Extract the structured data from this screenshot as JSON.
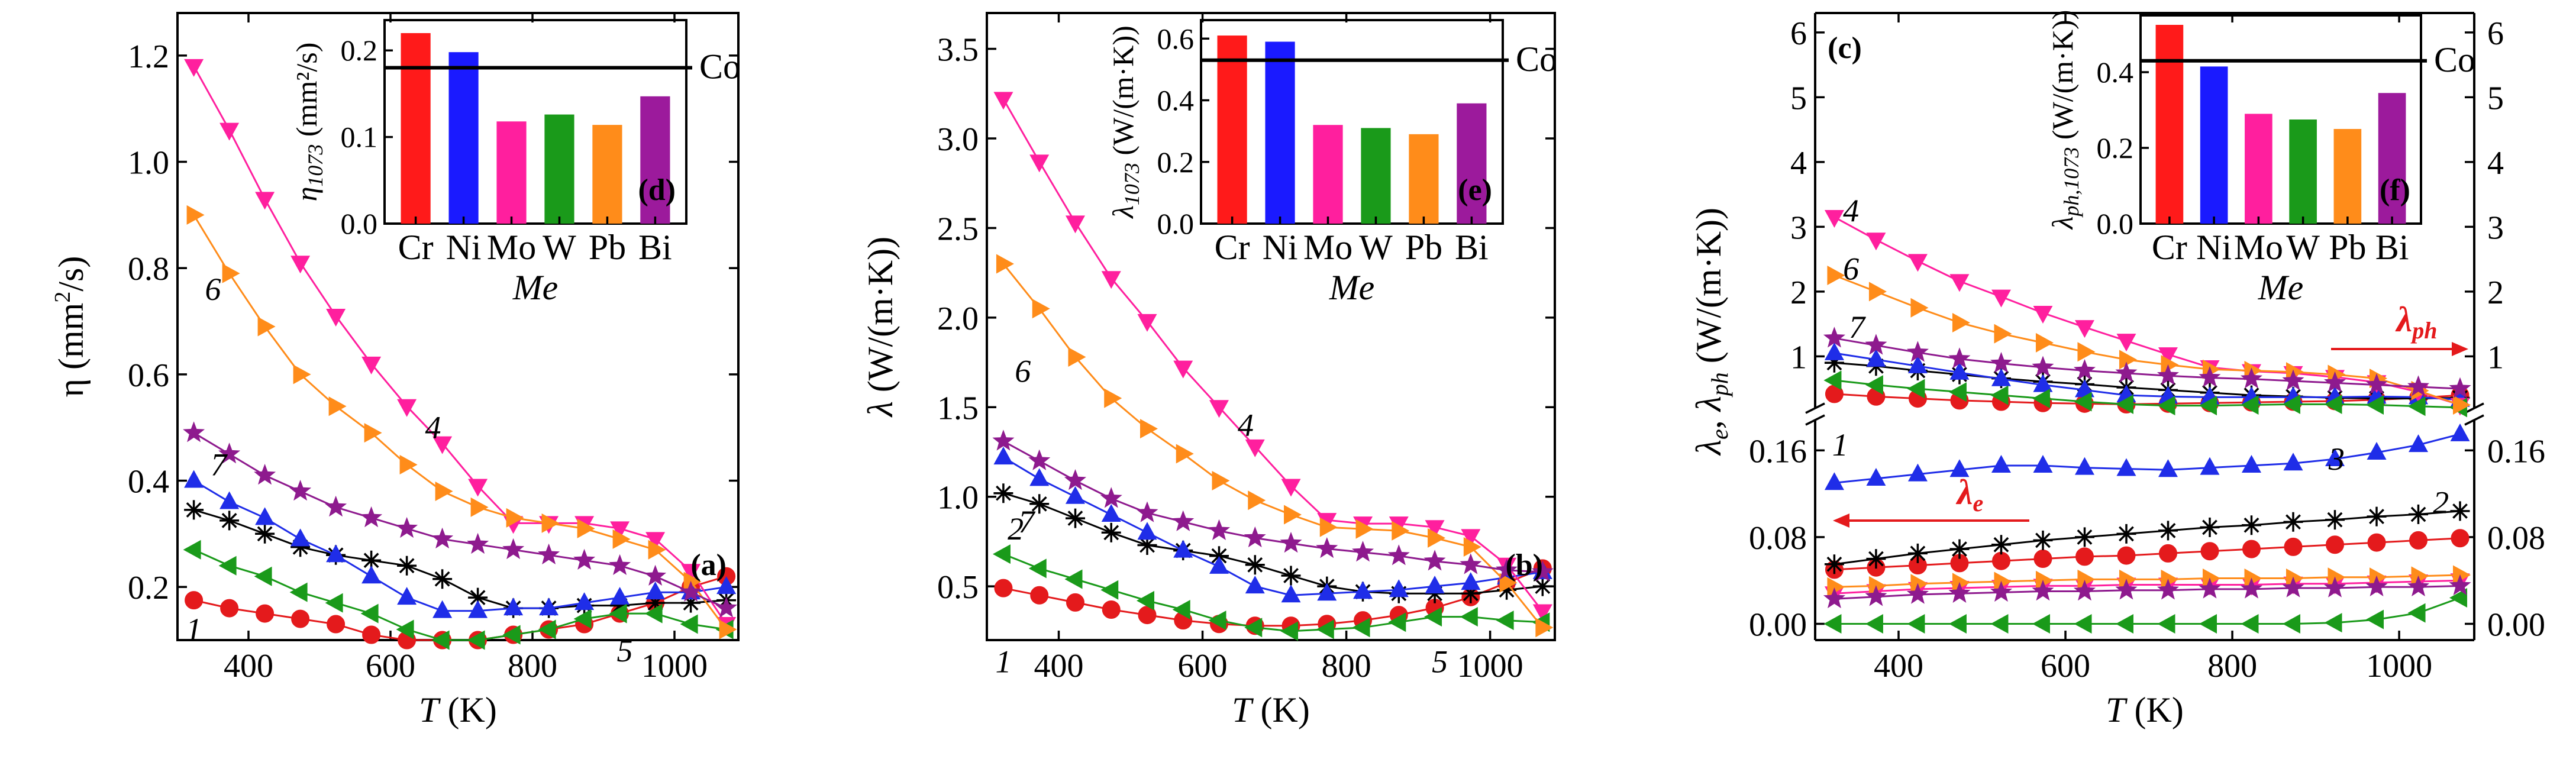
{
  "figure": {
    "curve_labels": [
      "1",
      "2",
      "3",
      "4",
      "5",
      "6",
      "7"
    ],
    "colors": {
      "1": "#e41a1c",
      "2": "#000000",
      "3": "#1f2de8",
      "4": "#ff1f9e",
      "5": "#1a9a1a",
      "6": "#ff8c1a",
      "7": "#8e1a8e",
      "Cr": "#ff1a1a",
      "Ni": "#1a1aff",
      "Mo": "#ff1f9e",
      "W": "#1a9a1a",
      "Pb": "#ff8c1a",
      "Bi": "#9c1a9c"
    },
    "annotations": {
      "lambda_ph": "λ",
      "lambda_ph_sub": "ph",
      "lambda_e": "λ",
      "lambda_e_sub": "e"
    }
  },
  "chart_data": [
    {
      "id": "a",
      "type": "line",
      "panel_label": "(a)",
      "xlabel": "T (K)",
      "ylabel": "η (mm²/s)",
      "xlim": [
        300,
        1090
      ],
      "ylim": [
        0.1,
        1.28
      ],
      "xticks": [
        "400",
        "600",
        "800",
        "1000"
      ],
      "yticks": [
        "0.2",
        "0.4",
        "0.6",
        "0.8",
        "1.0",
        "1.2"
      ],
      "x": [
        323,
        373,
        423,
        473,
        523,
        573,
        623,
        673,
        723,
        773,
        823,
        873,
        923,
        973,
        1023,
        1073
      ],
      "series": [
        {
          "name": "1",
          "marker": "circle",
          "values": [
            0.175,
            0.16,
            0.15,
            0.14,
            0.13,
            0.11,
            0.1,
            0.1,
            0.1,
            0.11,
            0.12,
            0.13,
            0.15,
            0.17,
            0.2,
            0.22
          ]
        },
        {
          "name": "2",
          "marker": "asterisk",
          "values": [
            0.345,
            0.325,
            0.3,
            0.275,
            0.26,
            0.25,
            0.24,
            0.215,
            0.18,
            0.16,
            0.16,
            0.165,
            0.165,
            0.17,
            0.17,
            0.175
          ]
        },
        {
          "name": "3",
          "marker": "triangle-up",
          "values": [
            0.4,
            0.36,
            0.33,
            0.29,
            0.26,
            0.22,
            0.18,
            0.155,
            0.155,
            0.16,
            0.16,
            0.17,
            0.18,
            0.19,
            0.19,
            0.2
          ]
        },
        {
          "name": "4",
          "marker": "triangle-down",
          "values": [
            1.18,
            1.06,
            0.93,
            0.81,
            0.71,
            0.62,
            0.54,
            0.47,
            0.39,
            0.32,
            0.32,
            0.32,
            0.31,
            0.29,
            0.23,
            0.13
          ]
        },
        {
          "name": "5",
          "marker": "triangle-left",
          "values": [
            0.27,
            0.24,
            0.22,
            0.19,
            0.17,
            0.15,
            0.12,
            0.1,
            0.1,
            0.11,
            0.12,
            0.14,
            0.15,
            0.15,
            0.13,
            0.12
          ]
        },
        {
          "name": "6",
          "marker": "triangle-right",
          "values": [
            0.9,
            0.79,
            0.69,
            0.6,
            0.54,
            0.49,
            0.43,
            0.38,
            0.35,
            0.33,
            0.32,
            0.31,
            0.29,
            0.27,
            0.21,
            0.12
          ]
        },
        {
          "name": "7",
          "marker": "star",
          "values": [
            0.49,
            0.45,
            0.41,
            0.38,
            0.35,
            0.33,
            0.31,
            0.29,
            0.28,
            0.27,
            0.26,
            0.25,
            0.24,
            0.22,
            0.19,
            0.16
          ]
        }
      ],
      "curve_label_positions": {
        "1": [
          323,
          0.12
        ],
        "4": [
          660,
          0.5
        ],
        "5": [
          930,
          0.08
        ],
        "6": [
          350,
          0.76
        ],
        "7": [
          358,
          0.43
        ]
      },
      "inset": {
        "panel_label": "(d)",
        "type": "bar",
        "xlabel": "Me",
        "ylabel": "η1073 (mm²/s)",
        "ylabel_main": "η",
        "ylabel_sub": "1073",
        "ylabel_unit": " (mm²/s)",
        "categories": [
          "Cr",
          "Ni",
          "Mo",
          "W",
          "Pb",
          "Bi"
        ],
        "values": [
          0.22,
          0.198,
          0.118,
          0.126,
          0.114,
          0.147
        ],
        "ylim": [
          0,
          0.235
        ],
        "yticks": [
          "0.0",
          "0.1",
          "0.2"
        ],
        "reference": {
          "label": "Co",
          "value": 0.18
        }
      }
    },
    {
      "id": "b",
      "type": "line",
      "panel_label": "(b)",
      "xlabel": "T (K)",
      "ylabel": "λ (W/(m·K))",
      "xlim": [
        300,
        1090
      ],
      "ylim": [
        0.2,
        3.7
      ],
      "xticks": [
        "400",
        "600",
        "800",
        "1000"
      ],
      "yticks": [
        "0.5",
        "1.0",
        "1.5",
        "2.0",
        "2.5",
        "3.0",
        "3.5"
      ],
      "x": [
        323,
        373,
        423,
        473,
        523,
        573,
        623,
        673,
        723,
        773,
        823,
        873,
        923,
        973,
        1023,
        1073
      ],
      "series": [
        {
          "name": "1",
          "marker": "circle",
          "values": [
            0.49,
            0.45,
            0.41,
            0.37,
            0.34,
            0.31,
            0.29,
            0.28,
            0.28,
            0.29,
            0.31,
            0.34,
            0.38,
            0.44,
            0.52,
            0.6
          ]
        },
        {
          "name": "2",
          "marker": "asterisk",
          "values": [
            1.02,
            0.96,
            0.88,
            0.8,
            0.73,
            0.7,
            0.67,
            0.62,
            0.56,
            0.5,
            0.47,
            0.46,
            0.46,
            0.46,
            0.48,
            0.5
          ]
        },
        {
          "name": "3",
          "marker": "triangle-up",
          "values": [
            1.22,
            1.1,
            1.0,
            0.9,
            0.8,
            0.7,
            0.61,
            0.5,
            0.45,
            0.46,
            0.47,
            0.48,
            0.5,
            0.52,
            0.55,
            0.58
          ]
        },
        {
          "name": "4",
          "marker": "triangle-down",
          "values": [
            3.22,
            2.87,
            2.53,
            2.22,
            1.98,
            1.72,
            1.5,
            1.28,
            1.06,
            0.87,
            0.85,
            0.85,
            0.83,
            0.78,
            0.62,
            0.36
          ]
        },
        {
          "name": "5",
          "marker": "triangle-left",
          "values": [
            0.68,
            0.6,
            0.54,
            0.48,
            0.42,
            0.37,
            0.31,
            0.27,
            0.25,
            0.26,
            0.27,
            0.3,
            0.33,
            0.33,
            0.31,
            0.3
          ]
        },
        {
          "name": "6",
          "marker": "triangle-right",
          "values": [
            2.3,
            2.05,
            1.78,
            1.55,
            1.38,
            1.24,
            1.09,
            0.98,
            0.9,
            0.83,
            0.82,
            0.81,
            0.77,
            0.72,
            0.52,
            0.27
          ]
        },
        {
          "name": "7",
          "marker": "star",
          "values": [
            1.31,
            1.2,
            1.09,
            0.99,
            0.91,
            0.86,
            0.81,
            0.77,
            0.74,
            0.71,
            0.69,
            0.67,
            0.64,
            0.62,
            0.59,
            0.58
          ]
        }
      ],
      "curve_label_positions": {
        "1": [
          323,
          0.08
        ],
        "2": [
          340,
          0.82
        ],
        "4": [
          660,
          1.4
        ],
        "5": [
          930,
          0.08
        ],
        "6": [
          350,
          1.7
        ],
        "7": [
          355,
          0.86
        ]
      },
      "inset": {
        "panel_label": "(e)",
        "type": "bar",
        "xlabel": "Me",
        "ylabel": "λ1073 (W/(m·K))",
        "ylabel_main": "λ",
        "ylabel_sub": "1073",
        "ylabel_unit": " (W/(m·K))",
        "categories": [
          "Cr",
          "Ni",
          "Mo",
          "W",
          "Pb",
          "Bi"
        ],
        "values": [
          0.61,
          0.59,
          0.32,
          0.31,
          0.29,
          0.39
        ],
        "ylim": [
          0,
          0.66
        ],
        "yticks": [
          "0.0",
          "0.2",
          "0.4",
          "0.6"
        ],
        "reference": {
          "label": "Co",
          "value": 0.53
        }
      }
    },
    {
      "id": "c",
      "type": "line",
      "panel_label": "(c)",
      "xlabel": "T (K)",
      "ylabel": "λe, λph (W/(m·K))",
      "xlim": [
        300,
        1090
      ],
      "upper_ylim": [
        0.2,
        6.3
      ],
      "upper_yticks": [
        "1",
        "2",
        "3",
        "4",
        "5",
        "6"
      ],
      "lower_ylim": [
        -0.015,
        0.188
      ],
      "lower_yticks": [
        "0.00",
        "0.08",
        "0.16"
      ],
      "xticks": [
        "400",
        "600",
        "800",
        "1000"
      ],
      "x": [
        323,
        373,
        423,
        473,
        523,
        573,
        623,
        673,
        723,
        773,
        823,
        873,
        923,
        973,
        1023,
        1073
      ],
      "series_ph": [
        {
          "name": "1",
          "marker": "circle",
          "values": [
            0.42,
            0.38,
            0.35,
            0.32,
            0.3,
            0.28,
            0.27,
            0.26,
            0.27,
            0.28,
            0.29,
            0.3,
            0.31,
            0.33,
            0.36,
            0.4
          ]
        },
        {
          "name": "2",
          "marker": "asterisk",
          "values": [
            0.9,
            0.85,
            0.78,
            0.72,
            0.66,
            0.61,
            0.57,
            0.52,
            0.48,
            0.44,
            0.4,
            0.38,
            0.36,
            0.35,
            0.35,
            0.36
          ]
        },
        {
          "name": "3",
          "marker": "triangle-up",
          "values": [
            1.05,
            0.95,
            0.85,
            0.75,
            0.65,
            0.56,
            0.48,
            0.4,
            0.38,
            0.37,
            0.37,
            0.37,
            0.37,
            0.38,
            0.37,
            0.33
          ]
        },
        {
          "name": "4",
          "marker": "triangle-down",
          "values": [
            3.15,
            2.8,
            2.47,
            2.16,
            1.92,
            1.67,
            1.45,
            1.24,
            1.03,
            0.83,
            0.77,
            0.74,
            0.68,
            0.6,
            0.45,
            0.25
          ]
        },
        {
          "name": "5",
          "marker": "triangle-left",
          "values": [
            0.63,
            0.56,
            0.5,
            0.45,
            0.4,
            0.35,
            0.3,
            0.26,
            0.24,
            0.24,
            0.25,
            0.26,
            0.26,
            0.25,
            0.23,
            0.21
          ]
        },
        {
          "name": "6",
          "marker": "triangle-right",
          "values": [
            2.25,
            2.0,
            1.75,
            1.52,
            1.35,
            1.21,
            1.07,
            0.95,
            0.87,
            0.8,
            0.78,
            0.76,
            0.72,
            0.66,
            0.47,
            0.25
          ]
        },
        {
          "name": "7",
          "marker": "star",
          "values": [
            1.28,
            1.17,
            1.06,
            0.96,
            0.89,
            0.83,
            0.78,
            0.74,
            0.7,
            0.67,
            0.65,
            0.62,
            0.59,
            0.56,
            0.53,
            0.5
          ]
        }
      ],
      "series_e": [
        {
          "name": "1",
          "marker": "circle",
          "values": [
            0.05,
            0.052,
            0.054,
            0.056,
            0.058,
            0.06,
            0.062,
            0.063,
            0.065,
            0.067,
            0.069,
            0.071,
            0.073,
            0.075,
            0.077,
            0.079
          ]
        },
        {
          "name": "2",
          "marker": "asterisk",
          "values": [
            0.055,
            0.06,
            0.065,
            0.069,
            0.073,
            0.077,
            0.08,
            0.083,
            0.086,
            0.089,
            0.091,
            0.094,
            0.096,
            0.099,
            0.101,
            0.104
          ]
        },
        {
          "name": "3",
          "marker": "triangle-up",
          "values": [
            0.13,
            0.134,
            0.138,
            0.142,
            0.146,
            0.146,
            0.144,
            0.143,
            0.142,
            0.144,
            0.146,
            0.148,
            0.152,
            0.158,
            0.165,
            0.175
          ]
        },
        {
          "name": "4",
          "marker": "triangle-down",
          "values": [
            0.028,
            0.03,
            0.032,
            0.033,
            0.034,
            0.035,
            0.035,
            0.036,
            0.036,
            0.036,
            0.036,
            0.037,
            0.037,
            0.038,
            0.039,
            0.04
          ]
        },
        {
          "name": "5",
          "marker": "triangle-left",
          "values": [
            0.0,
            0.0,
            0.0,
            0.0,
            0.0,
            0.0,
            0.0,
            0.0,
            0.0,
            0.0,
            0.0,
            0.0,
            0.001,
            0.004,
            0.01,
            0.024
          ]
        },
        {
          "name": "6",
          "marker": "triangle-right",
          "values": [
            0.034,
            0.035,
            0.037,
            0.038,
            0.039,
            0.04,
            0.041,
            0.041,
            0.041,
            0.042,
            0.042,
            0.042,
            0.043,
            0.043,
            0.044,
            0.045
          ]
        },
        {
          "name": "7",
          "marker": "star",
          "values": [
            0.023,
            0.025,
            0.027,
            0.028,
            0.029,
            0.03,
            0.03,
            0.031,
            0.031,
            0.032,
            0.032,
            0.033,
            0.033,
            0.034,
            0.034,
            0.035
          ]
        }
      ],
      "curve_label_positions_upper": {
        "4": [
          343,
          3.25
        ],
        "6": [
          343,
          2.35
        ],
        "7": [
          350,
          1.45
        ]
      },
      "curve_label_positions_lower": {
        "1": [
          330,
          0.165
        ],
        "2": [
          1050,
          0.112
        ],
        "3": [
          925,
          0.152
        ]
      },
      "inset": {
        "panel_label": "(f)",
        "type": "bar",
        "xlabel": "Me",
        "ylabel": "λph,1073 (W/(m·K))",
        "ylabel_main": "λ",
        "ylabel_sub": "ph,1073",
        "ylabel_unit": " (W/(m·K))",
        "categories": [
          "Cr",
          "Ni",
          "Mo",
          "W",
          "Pb",
          "Bi"
        ],
        "values": [
          0.525,
          0.415,
          0.29,
          0.275,
          0.25,
          0.345
        ],
        "ylim": [
          0,
          0.55
        ],
        "yticks": [
          "0.0",
          "0.2",
          "0.4"
        ],
        "reference": {
          "label": "Co",
          "value": 0.43
        }
      }
    }
  ]
}
